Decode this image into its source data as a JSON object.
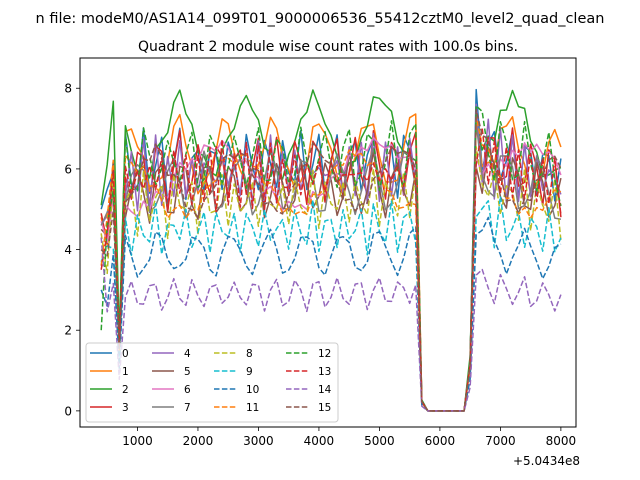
{
  "figure": {
    "suptitle": "n file: modeM0/AS1A14_099T01_9000006536_55412cztM0_level2_quad_clean"
  },
  "chart_data": {
    "type": "line",
    "title": "Quadrant 2 module wise count rates with 100.0s bins.",
    "xlabel": "",
    "ylabel": "",
    "x_offset_label": "+5.0434e8",
    "xlim": [
      50,
      8250
    ],
    "ylim": [
      -0.4,
      8.75
    ],
    "xticks": [
      1000,
      2000,
      3000,
      4000,
      5000,
      6000,
      7000,
      8000
    ],
    "yticks": [
      0,
      2,
      4,
      6,
      8
    ],
    "grid": false,
    "legend": {
      "position": "lower-left",
      "ncol": 4
    },
    "x": [
      400,
      500,
      600,
      700,
      800,
      900,
      1000,
      1100,
      1200,
      1300,
      1400,
      1500,
      1600,
      1700,
      1800,
      1900,
      2000,
      2100,
      2200,
      2300,
      2400,
      2500,
      2600,
      2700,
      2800,
      2900,
      3000,
      3100,
      3200,
      3300,
      3400,
      3500,
      3600,
      3700,
      3800,
      3900,
      4000,
      4100,
      4200,
      4300,
      4400,
      4500,
      4600,
      4700,
      4800,
      4900,
      5000,
      5100,
      5200,
      5300,
      5400,
      5500,
      5600,
      5700,
      5800,
      5900,
      6000,
      6100,
      6200,
      6300,
      6400,
      6500,
      6600,
      6700,
      6800,
      6900,
      7000,
      7100,
      7200,
      7300,
      7400,
      7500,
      7600,
      7700,
      7800,
      7900,
      8000
    ],
    "pattern": [
      0.0,
      0.78,
      1.0,
      0.27,
      1.0,
      0.98,
      0.96,
      1.02,
      0.97,
      1.03,
      0.99,
      0.95,
      1.01,
      1.04,
      0.98,
      1.0,
      0.97,
      1.02,
      1.0,
      0.98,
      1.03,
      1.01,
      0.97,
      1.0,
      1.02,
      0.99,
      1.01,
      0.98,
      1.03,
      1.0,
      0.97,
      1.02,
      1.0,
      1.01,
      0.98,
      1.04,
      1.0,
      0.99,
      1.02,
      1.01,
      0.98,
      1.03,
      1.0,
      1.02,
      0.99,
      1.04,
      1.01,
      1.0,
      1.03,
      0.99,
      1.02,
      1.05,
      1.04,
      0.04,
      0.0,
      0.0,
      0.0,
      0.0,
      0.0,
      0.0,
      0.0,
      0.2,
      1.18,
      1.08,
      1.1,
      1.02,
      1.06,
      1.0,
      1.04,
      0.99,
      1.03,
      0.98,
      1.01,
      0.97,
      0.99,
      0.98,
      0.93
    ],
    "start_values": [
      5.0,
      4.8,
      5.1,
      4.9,
      4.6,
      4.5,
      4.7,
      4.6,
      4.4,
      3.7,
      3.0,
      3.6,
      2.0,
      3.5,
      4.3,
      4.0
    ],
    "series": [
      {
        "name": "0",
        "level": 6.1,
        "color": "#1f77b4",
        "style": "solid"
      },
      {
        "name": "1",
        "level": 6.3,
        "color": "#ff7f0e",
        "style": "solid"
      },
      {
        "name": "2",
        "level": 6.8,
        "color": "#2ca02c",
        "style": "solid"
      },
      {
        "name": "3",
        "level": 6.0,
        "color": "#d62728",
        "style": "solid"
      },
      {
        "name": "4",
        "level": 5.9,
        "color": "#9467bd",
        "style": "solid"
      },
      {
        "name": "5",
        "level": 5.5,
        "color": "#8c564b",
        "style": "solid"
      },
      {
        "name": "6",
        "level": 5.8,
        "color": "#e377c2",
        "style": "solid"
      },
      {
        "name": "7",
        "level": 5.6,
        "color": "#7f7f7f",
        "style": "solid"
      },
      {
        "name": "8",
        "level": 5.2,
        "color": "#bcbd22",
        "style": "dashed"
      },
      {
        "name": "9",
        "level": 4.5,
        "color": "#17becf",
        "style": "dashed"
      },
      {
        "name": "10",
        "level": 3.9,
        "color": "#1f77b4",
        "style": "dashed"
      },
      {
        "name": "11",
        "level": 5.6,
        "color": "#ff7f0e",
        "style": "dashed"
      },
      {
        "name": "12",
        "level": 6.2,
        "color": "#2ca02c",
        "style": "dashed"
      },
      {
        "name": "13",
        "level": 5.8,
        "color": "#d62728",
        "style": "dashed"
      },
      {
        "name": "14",
        "level": 2.9,
        "color": "#9467bd",
        "style": "dashed"
      },
      {
        "name": "15",
        "level": 5.7,
        "color": "#8c564b",
        "style": "dashed"
      }
    ]
  }
}
